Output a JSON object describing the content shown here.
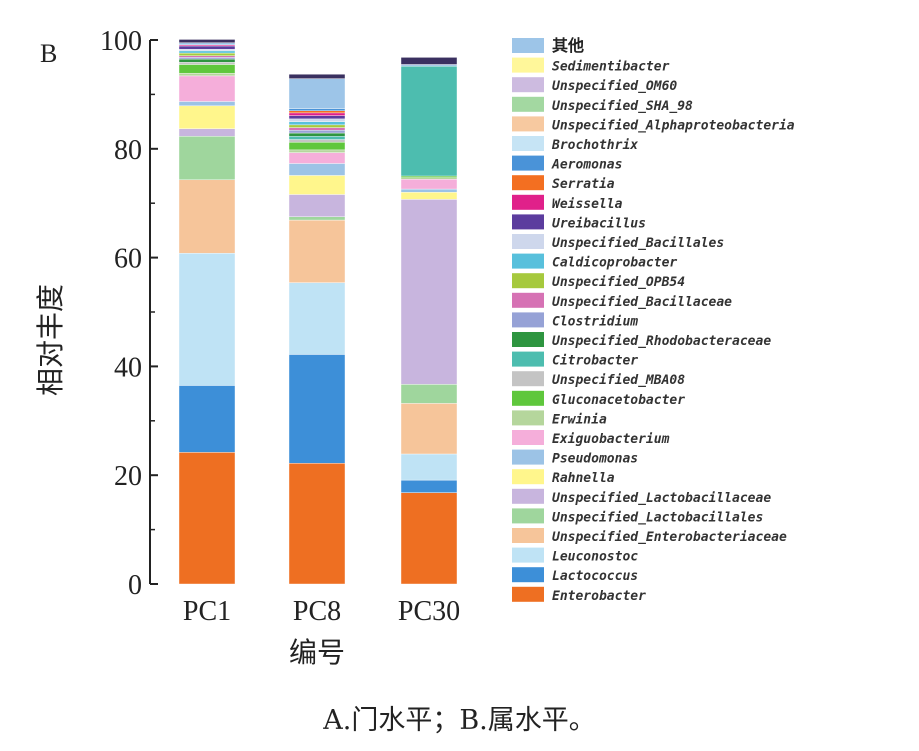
{
  "chart_data": {
    "type": "bar",
    "stacked": true,
    "panel_label": "B",
    "xlabel": "编号",
    "ylabel": "相对丰度",
    "ylim": [
      0,
      100
    ],
    "yticks": [
      "0",
      "20",
      "40",
      "60",
      "80",
      "100"
    ],
    "categories": [
      "PC1",
      "PC8",
      "PC30"
    ],
    "series": [
      {
        "name": "Enterobacter",
        "color": "#EE6F22",
        "values": [
          24.2,
          22.2,
          16.8
        ]
      },
      {
        "name": "Lactococcus",
        "color": "#3D8FD8",
        "values": [
          12.3,
          20.0,
          2.3
        ]
      },
      {
        "name": "Leuconostoc",
        "color": "#BFE3F5",
        "values": [
          24.3,
          13.2,
          4.8
        ]
      },
      {
        "name": "Unspecified_Enterobacteriaceae",
        "color": "#F6C59A",
        "values": [
          13.5,
          11.5,
          9.3
        ]
      },
      {
        "name": "Unspecified_Lactobacillales",
        "color": "#9FD69D",
        "values": [
          8.0,
          0.6,
          3.5
        ]
      },
      {
        "name": "Unspecified_Lactobacillaceae",
        "color": "#C8B5DE",
        "values": [
          1.4,
          4.1,
          34.0
        ]
      },
      {
        "name": "Rahnella",
        "color": "#FFF68C",
        "values": [
          4.2,
          3.5,
          1.3
        ]
      },
      {
        "name": "Pseudomonas",
        "color": "#9CC3E6",
        "values": [
          0.8,
          2.2,
          0.6
        ]
      },
      {
        "name": "Exiguobacterium",
        "color": "#F5AEDA",
        "values": [
          4.7,
          2.0,
          1.8
        ]
      },
      {
        "name": "Erwinia",
        "color": "#B5D69C",
        "values": [
          0.5,
          0.5,
          0.3
        ]
      },
      {
        "name": "Gluconacetobacter",
        "color": "#5FC73C",
        "values": [
          1.6,
          1.4,
          0.3
        ]
      },
      {
        "name": "Unspecified_MBA08",
        "color": "#C4C4C4",
        "values": [
          0.4,
          0.5,
          0.0
        ]
      },
      {
        "name": "Citrobacter",
        "color": "#4DBDAF",
        "values": [
          0.0,
          0.6,
          20.2
        ]
      },
      {
        "name": "Unspecified_Rhodobacteraceae",
        "color": "#2E9540",
        "values": [
          0.6,
          0.6,
          0.0
        ]
      },
      {
        "name": "Clostridium",
        "color": "#96A2D6",
        "values": [
          0.3,
          0.5,
          0.0
        ]
      },
      {
        "name": "Unspecified_Bacillaceae",
        "color": "#D672B4",
        "values": [
          0.3,
          0.5,
          0.0
        ]
      },
      {
        "name": "Unspecified_OPB54",
        "color": "#A6C93D",
        "values": [
          0.5,
          0.5,
          0.0
        ]
      },
      {
        "name": "Caldicoprobacter",
        "color": "#58C0DC",
        "values": [
          0.4,
          0.6,
          0.0
        ]
      },
      {
        "name": "Unspecified_Bacillales",
        "color": "#CED7EC",
        "values": [
          0.3,
          0.5,
          0.0
        ]
      },
      {
        "name": "Ureibacillus",
        "color": "#5C3C9E",
        "values": [
          0.6,
          0.6,
          0.0
        ]
      },
      {
        "name": "Weissella",
        "color": "#E0218A",
        "values": [
          0.2,
          0.5,
          0.0
        ]
      },
      {
        "name": "Serratia",
        "color": "#F36F21",
        "values": [
          0.0,
          0.4,
          0.0
        ]
      },
      {
        "name": "Aeromonas",
        "color": "#4A93D8",
        "values": [
          0.0,
          0.4,
          0.0
        ]
      },
      {
        "name": "Brochothrix",
        "color": "#C6E4F5",
        "values": [
          0.0,
          0.0,
          0.0
        ]
      },
      {
        "name": "Unspecified_Alphaproteobacteria",
        "color": "#F7C9A0",
        "values": [
          0.0,
          0.0,
          0.0
        ]
      },
      {
        "name": "Unspecified_SHA_98",
        "color": "#A3D8A1",
        "values": [
          0.0,
          0.0,
          0.0
        ]
      },
      {
        "name": "Unspecified_OM60",
        "color": "#CDBBE0",
        "values": [
          0.0,
          0.0,
          0.0
        ]
      },
      {
        "name": "Sedimentibacter",
        "color": "#FFF79A",
        "values": [
          0.0,
          0.0,
          0.0
        ]
      },
      {
        "name": "其他",
        "color": "#9DC5E8",
        "values": [
          0.4,
          5.5,
          0.3
        ]
      },
      {
        "name": "",
        "color": "#3A3060",
        "values": [
          0.6,
          0.8,
          1.3
        ]
      }
    ]
  },
  "caption": "A.门水平；B.属水平。"
}
